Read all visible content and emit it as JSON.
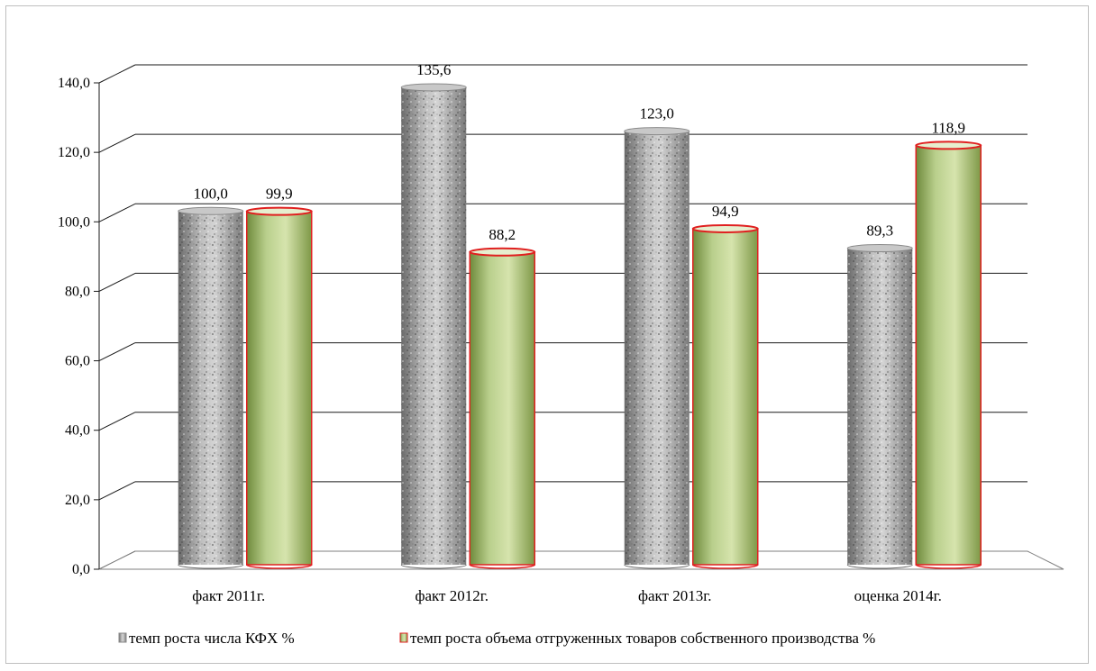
{
  "chart_data": {
    "type": "bar",
    "categories": [
      "факт 2011г.",
      "факт 2012г.",
      "факт 2013г.",
      "оценка 2014г."
    ],
    "series": [
      {
        "name": "темп роста числа КФХ %",
        "values": [
          100.0,
          135.6,
          123.0,
          89.3
        ],
        "labels": [
          "100,0",
          "135,6",
          "123,0",
          "89,3"
        ],
        "color": "#9a9a9a"
      },
      {
        "name": "темп роста объема отгруженных  товаров собственного производства %",
        "values": [
          99.9,
          88.2,
          94.9,
          118.9
        ],
        "labels": [
          "99,9",
          "88,2",
          "94,9",
          "118,9"
        ],
        "color": "#b7cc8a",
        "outline": "#e02020"
      }
    ],
    "ylim": [
      0,
      140
    ],
    "yticks": [
      0,
      20,
      40,
      60,
      80,
      100,
      120,
      140
    ],
    "ytick_labels": [
      "0,0",
      "20,0",
      "40,0",
      "60,0",
      "80,0",
      "100,0",
      "120,0",
      "140,0"
    ],
    "grid": true,
    "legend_position": "bottom"
  }
}
